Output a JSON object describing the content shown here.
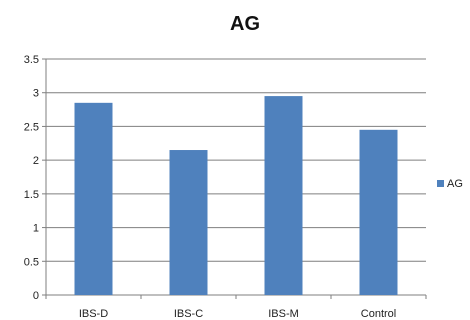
{
  "chart_data": {
    "type": "bar",
    "title": "AG",
    "xlabel": "",
    "ylabel": "",
    "categories": [
      "IBS-D",
      "IBS-C",
      "IBS-M",
      "Control"
    ],
    "series": [
      {
        "name": "AG",
        "values": [
          2.85,
          2.15,
          2.95,
          2.45
        ]
      }
    ],
    "ylim": [
      0,
      3.5
    ],
    "yticks": [
      "0",
      "0.5",
      "1",
      "1.5",
      "2",
      "2.5",
      "3",
      "3.5"
    ],
    "grid": true,
    "legend": "right",
    "colors": {
      "bar": "#4f81bd",
      "grid": "#7f7f7f",
      "axis": "#7f7f7f"
    }
  }
}
